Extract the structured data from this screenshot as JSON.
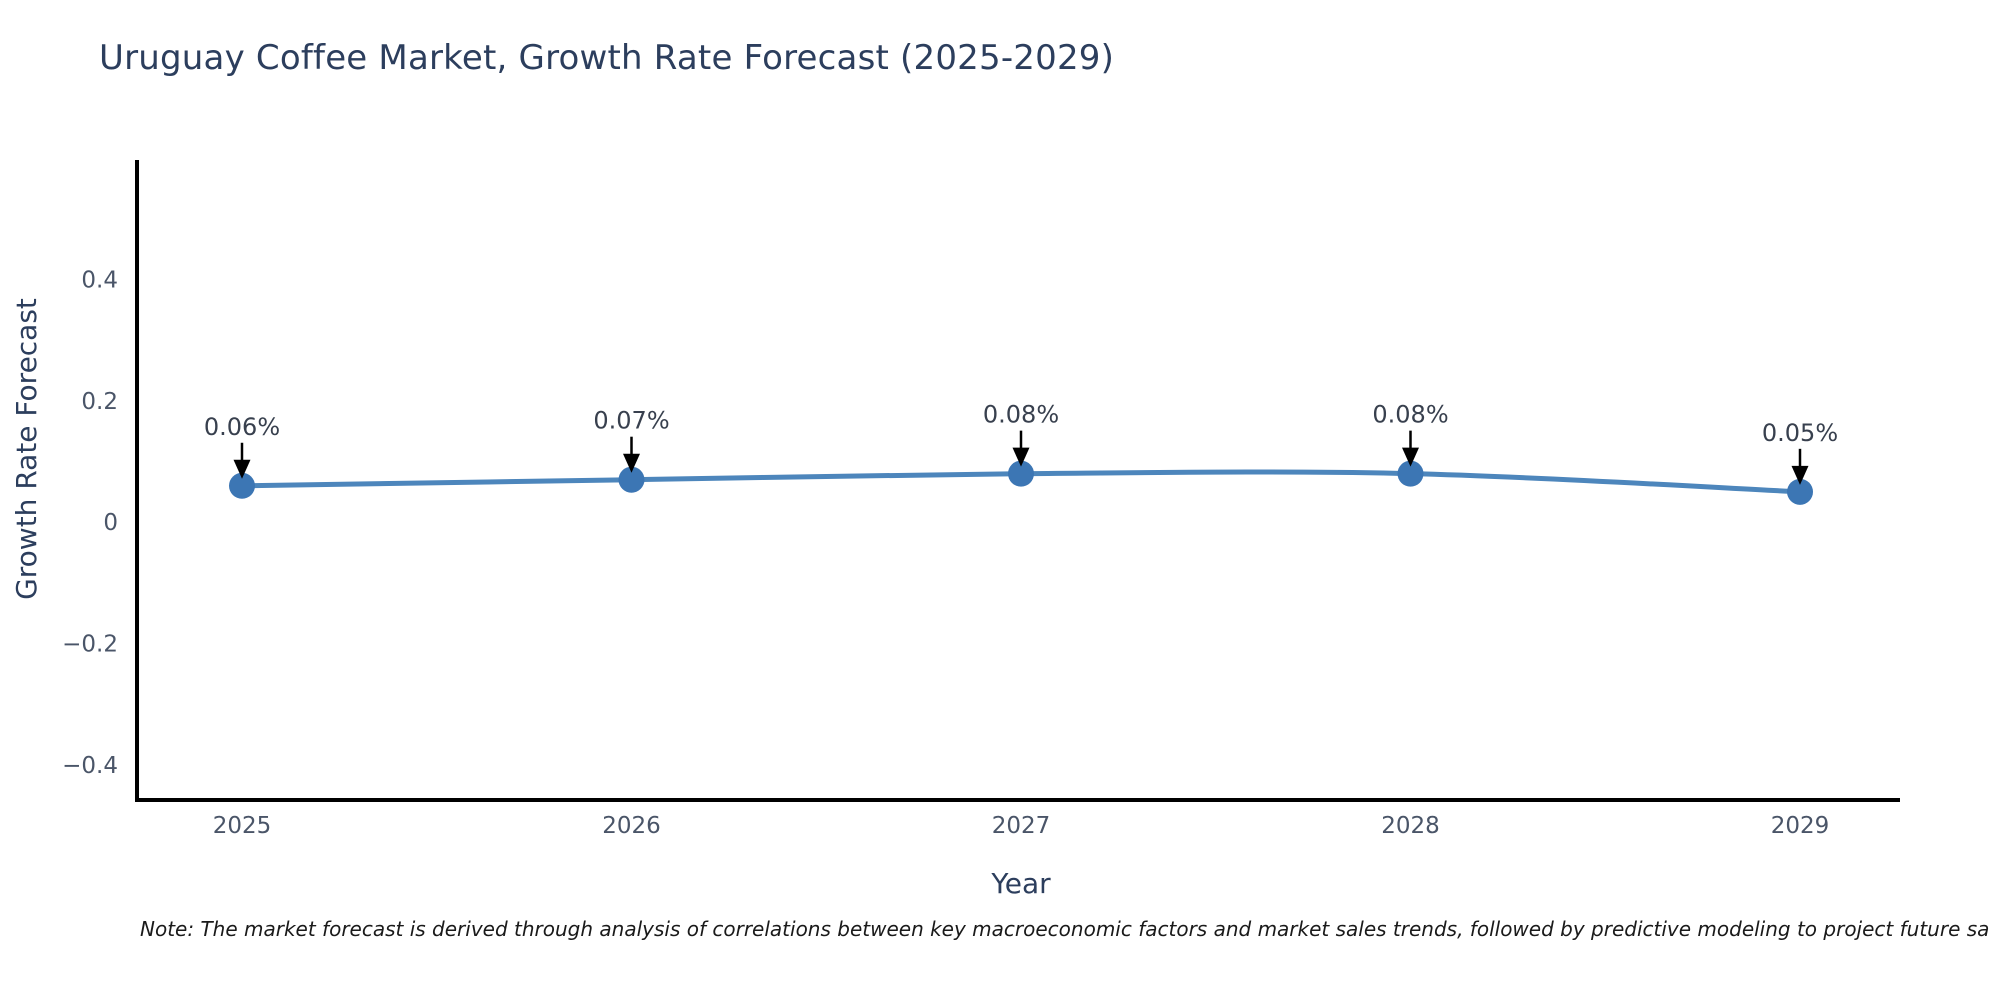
{
  "chart": {
    "title": "Uruguay Coffee Market, Growth Rate Forecast (2025-2029)",
    "xlabel": "Year",
    "ylabel": "Growth Rate Forecast"
  },
  "note": {
    "text": "Note: The market forecast is derived through analysis of correlations between key macroeconomic factors and market sales trends, followed by predictive modeling to project future sa"
  },
  "chart_data": {
    "type": "line",
    "title": "Uruguay Coffee Market, Growth Rate Forecast (2025-2029)",
    "xlabel": "Year",
    "ylabel": "Growth Rate Forecast",
    "x": [
      "2025",
      "2026",
      "2027",
      "2028",
      "2029"
    ],
    "series": [
      {
        "name": "Growth Rate Forecast",
        "values": [
          0.06,
          0.07,
          0.08,
          0.08,
          0.05
        ],
        "point_labels": [
          "0.06%",
          "0.07%",
          "0.08%",
          "0.08%",
          "0.05%"
        ]
      }
    ],
    "yticks": [
      0.4,
      0.2,
      0,
      -0.2,
      -0.4
    ],
    "ytick_labels": [
      "0.4",
      "0.2",
      "0",
      "−0.2",
      "−0.4"
    ],
    "ylim": [
      -0.458,
      0.597
    ],
    "grid": false,
    "legend": "none",
    "marker_style": "circle",
    "annotation_arrows": true,
    "colors": {
      "line": "#4d86bc",
      "marker": "#3c76b4",
      "axis_spine": "#000000",
      "title_text": "#2c3e5d",
      "tick_text": "#4a5568",
      "annotation_text": "#38404e",
      "arrow": "#000000"
    }
  }
}
